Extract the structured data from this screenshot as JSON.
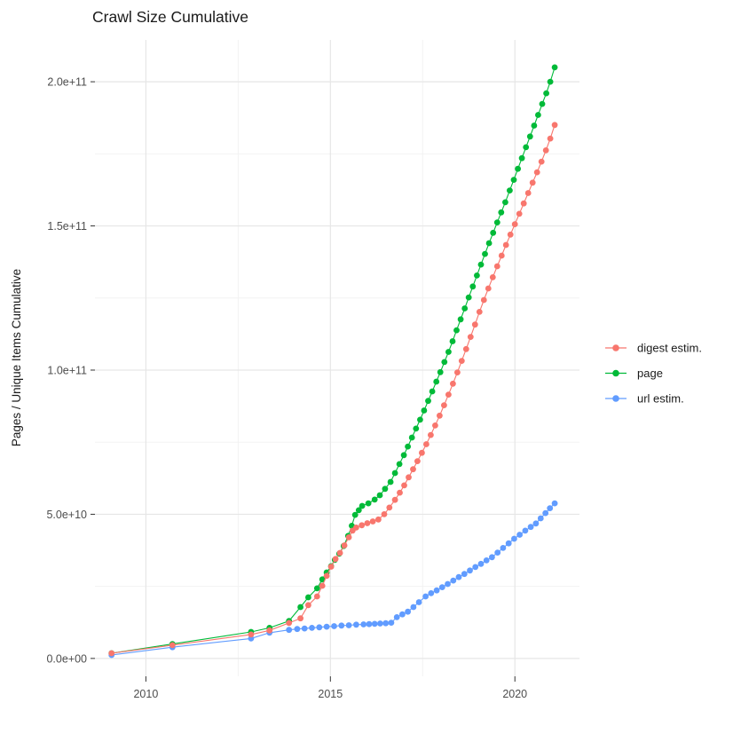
{
  "title": "Crawl Size Cumulative",
  "colors": {
    "background": "#ffffff",
    "grid_major": "#e6e6e6",
    "grid_minor": "#f1f1f1",
    "tick_mark": "#333333",
    "tick_label": "#4d4d4d",
    "text": "#1a1a1a",
    "digest": "#F8766D",
    "page": "#00BA38",
    "url": "#619CFF"
  },
  "chart_data": {
    "type": "scatter",
    "title": "Crawl Size Cumulative",
    "xlabel": "",
    "ylabel": "Pages / Unique Items Cumulative",
    "value_unit": "1e9",
    "grid": true,
    "legend_position": "right",
    "xlim": [
      2008.62,
      2021.75
    ],
    "ylim_e9": [
      -6.2,
      214.5
    ],
    "x_ticks": [
      {
        "value": 2010,
        "label": "2010"
      },
      {
        "value": 2015,
        "label": "2015"
      },
      {
        "value": 2020,
        "label": "2020"
      }
    ],
    "x_minor": [
      2012.5,
      2017.5
    ],
    "y_ticks": [
      {
        "value_e9": 0,
        "label": "0.0e+00"
      },
      {
        "value_e9": 50,
        "label": "5.0e+10"
      },
      {
        "value_e9": 100,
        "label": "1.0e+11"
      },
      {
        "value_e9": 150,
        "label": "1.5e+11"
      },
      {
        "value_e9": 200,
        "label": "2.0e+11"
      }
    ],
    "y_minor_e9": [
      25,
      75,
      125,
      175
    ],
    "series": [
      {
        "name": "digest estim.",
        "color": "#F8766D",
        "points": [
          [
            2009.07,
            1.8
          ],
          [
            2010.72,
            4.6
          ],
          [
            2012.85,
            8.3
          ],
          [
            2013.35,
            9.7
          ],
          [
            2013.88,
            12.3
          ],
          [
            2014.19,
            13.9
          ],
          [
            2014.4,
            18.5
          ],
          [
            2014.64,
            21.5
          ],
          [
            2014.78,
            25.2
          ],
          [
            2014.9,
            28.6
          ],
          [
            2015.02,
            31.8
          ],
          [
            2015.14,
            34.5
          ],
          [
            2015.26,
            36.6
          ],
          [
            2015.38,
            39.2
          ],
          [
            2015.5,
            42.0
          ],
          [
            2015.6,
            44.3
          ],
          [
            2015.7,
            45.4
          ],
          [
            2015.85,
            46.2
          ],
          [
            2016.0,
            46.9
          ],
          [
            2016.15,
            47.5
          ],
          [
            2016.3,
            48.2
          ],
          [
            2016.46,
            50.0
          ],
          [
            2016.6,
            52.3
          ],
          [
            2016.75,
            55.0
          ],
          [
            2016.88,
            57.5
          ],
          [
            2017.0,
            60.0
          ],
          [
            2017.12,
            62.8
          ],
          [
            2017.24,
            65.6
          ],
          [
            2017.36,
            68.4
          ],
          [
            2017.48,
            71.3
          ],
          [
            2017.6,
            74.3
          ],
          [
            2017.72,
            77.5
          ],
          [
            2017.84,
            80.8
          ],
          [
            2017.96,
            84.2
          ],
          [
            2018.08,
            87.8
          ],
          [
            2018.2,
            91.5
          ],
          [
            2018.32,
            95.3
          ],
          [
            2018.44,
            99.2
          ],
          [
            2018.56,
            103.2
          ],
          [
            2018.68,
            107.3
          ],
          [
            2018.8,
            111.5
          ],
          [
            2018.92,
            115.8
          ],
          [
            2019.04,
            120.2
          ],
          [
            2019.16,
            124.3
          ],
          [
            2019.28,
            128.3
          ],
          [
            2019.4,
            132.2
          ],
          [
            2019.52,
            136.0
          ],
          [
            2019.64,
            139.7
          ],
          [
            2019.76,
            143.4
          ],
          [
            2019.88,
            147.0
          ],
          [
            2020.0,
            150.6
          ],
          [
            2020.12,
            154.2
          ],
          [
            2020.24,
            157.8
          ],
          [
            2020.36,
            161.4
          ],
          [
            2020.48,
            165.0
          ],
          [
            2020.6,
            168.6
          ],
          [
            2020.72,
            172.3
          ],
          [
            2020.84,
            176.2
          ],
          [
            2020.96,
            180.3
          ],
          [
            2021.08,
            185.0
          ]
        ]
      },
      {
        "name": "page",
        "color": "#00BA38",
        "points": [
          [
            2009.07,
            1.8
          ],
          [
            2010.72,
            5.0
          ],
          [
            2012.85,
            9.2
          ],
          [
            2013.35,
            10.6
          ],
          [
            2013.88,
            13.0
          ],
          [
            2014.19,
            17.8
          ],
          [
            2014.4,
            21.2
          ],
          [
            2014.64,
            24.3
          ],
          [
            2014.78,
            27.4
          ],
          [
            2014.9,
            29.8
          ],
          [
            2015.02,
            32.0
          ],
          [
            2015.12,
            34.2
          ],
          [
            2015.24,
            36.3
          ],
          [
            2015.36,
            39.0
          ],
          [
            2015.48,
            42.5
          ],
          [
            2015.58,
            46.0
          ],
          [
            2015.67,
            49.8
          ],
          [
            2015.77,
            51.4
          ],
          [
            2015.86,
            52.9
          ],
          [
            2016.03,
            53.8
          ],
          [
            2016.2,
            55.1
          ],
          [
            2016.34,
            56.6
          ],
          [
            2016.48,
            58.8
          ],
          [
            2016.63,
            61.2
          ],
          [
            2016.75,
            64.3
          ],
          [
            2016.87,
            67.4
          ],
          [
            2016.99,
            70.5
          ],
          [
            2017.1,
            73.5
          ],
          [
            2017.21,
            76.6
          ],
          [
            2017.32,
            79.7
          ],
          [
            2017.43,
            82.8
          ],
          [
            2017.54,
            86.0
          ],
          [
            2017.65,
            89.3
          ],
          [
            2017.76,
            92.6
          ],
          [
            2017.87,
            96.0
          ],
          [
            2017.98,
            99.3
          ],
          [
            2018.09,
            102.8
          ],
          [
            2018.2,
            106.3
          ],
          [
            2018.31,
            110.0
          ],
          [
            2018.42,
            113.8
          ],
          [
            2018.53,
            117.6
          ],
          [
            2018.64,
            121.4
          ],
          [
            2018.75,
            125.2
          ],
          [
            2018.86,
            129.0
          ],
          [
            2018.97,
            132.8
          ],
          [
            2019.08,
            136.6
          ],
          [
            2019.19,
            140.3
          ],
          [
            2019.3,
            144.0
          ],
          [
            2019.41,
            147.6
          ],
          [
            2019.52,
            151.2
          ],
          [
            2019.63,
            154.7
          ],
          [
            2019.74,
            158.2
          ],
          [
            2019.86,
            162.3
          ],
          [
            2019.97,
            166.0
          ],
          [
            2020.08,
            169.8
          ],
          [
            2020.19,
            173.5
          ],
          [
            2020.3,
            177.3
          ],
          [
            2020.41,
            181.0
          ],
          [
            2020.52,
            184.8
          ],
          [
            2020.63,
            188.5
          ],
          [
            2020.74,
            192.3
          ],
          [
            2020.85,
            196.0
          ],
          [
            2020.96,
            200.0
          ],
          [
            2021.08,
            205.0
          ]
        ]
      },
      {
        "name": "url estim.",
        "color": "#619CFF",
        "points": [
          [
            2009.07,
            1.2
          ],
          [
            2010.72,
            3.9
          ],
          [
            2012.85,
            6.9
          ],
          [
            2013.35,
            8.9
          ],
          [
            2013.88,
            9.9
          ],
          [
            2014.1,
            10.2
          ],
          [
            2014.3,
            10.4
          ],
          [
            2014.5,
            10.6
          ],
          [
            2014.7,
            10.8
          ],
          [
            2014.9,
            11.0
          ],
          [
            2015.1,
            11.2
          ],
          [
            2015.3,
            11.4
          ],
          [
            2015.5,
            11.5
          ],
          [
            2015.7,
            11.7
          ],
          [
            2015.9,
            11.8
          ],
          [
            2016.05,
            11.9
          ],
          [
            2016.2,
            12.0
          ],
          [
            2016.35,
            12.1
          ],
          [
            2016.5,
            12.2
          ],
          [
            2016.65,
            12.4
          ],
          [
            2016.8,
            14.3
          ],
          [
            2016.95,
            15.3
          ],
          [
            2017.1,
            16.2
          ],
          [
            2017.25,
            17.8
          ],
          [
            2017.4,
            19.5
          ],
          [
            2017.58,
            21.5
          ],
          [
            2017.73,
            22.6
          ],
          [
            2017.88,
            23.6
          ],
          [
            2018.03,
            24.7
          ],
          [
            2018.18,
            25.8
          ],
          [
            2018.33,
            27.0
          ],
          [
            2018.48,
            28.2
          ],
          [
            2018.63,
            29.3
          ],
          [
            2018.78,
            30.5
          ],
          [
            2018.93,
            31.7
          ],
          [
            2019.08,
            32.8
          ],
          [
            2019.23,
            34.0
          ],
          [
            2019.38,
            35.1
          ],
          [
            2019.53,
            36.7
          ],
          [
            2019.68,
            38.3
          ],
          [
            2019.83,
            39.9
          ],
          [
            2019.98,
            41.5
          ],
          [
            2020.13,
            42.9
          ],
          [
            2020.28,
            44.3
          ],
          [
            2020.43,
            45.6
          ],
          [
            2020.57,
            46.8
          ],
          [
            2020.7,
            48.6
          ],
          [
            2020.83,
            50.4
          ],
          [
            2020.95,
            52.1
          ],
          [
            2021.08,
            53.8
          ]
        ]
      }
    ],
    "legend": {
      "entries": [
        {
          "label": "digest estim.",
          "color": "#F8766D"
        },
        {
          "label": "page",
          "color": "#00BA38"
        },
        {
          "label": "url estim.",
          "color": "#619CFF"
        }
      ]
    }
  }
}
